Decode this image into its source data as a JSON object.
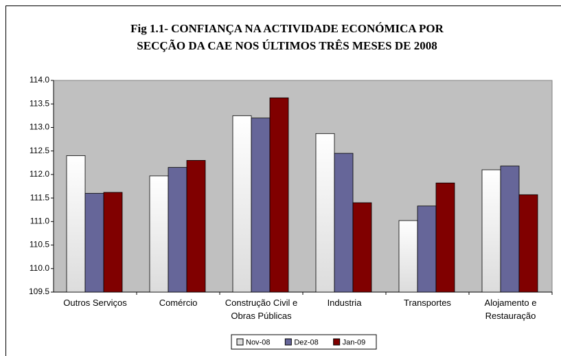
{
  "chart_data": {
    "type": "bar",
    "title": [
      "Fig 1.1- CONFIANÇA  NA ACTIVIDADE ECONÓMICA  POR",
      "SECÇÃO DA CAE  NOS ÚLTIMOS TRÊS MESES DE  2008"
    ],
    "categories": [
      "Outros Serviços",
      "Comércio",
      "Construção Civil e Obras Públicas",
      "Industria",
      "Transportes",
      "Alojamento e Restauração"
    ],
    "series": [
      {
        "name": "Nov-08",
        "color": "#dcdcdc",
        "values": [
          112.4,
          111.97,
          113.25,
          112.87,
          111.02,
          112.1
        ]
      },
      {
        "name": "Dez-08",
        "color": "#666699",
        "values": [
          111.6,
          112.15,
          113.2,
          112.45,
          111.33,
          112.18
        ]
      },
      {
        "name": "Jan-09",
        "color": "#800000",
        "values": [
          111.62,
          112.3,
          113.63,
          111.4,
          111.82,
          111.57
        ]
      }
    ],
    "ylim": [
      109.5,
      114.0
    ],
    "yticks": [
      109.5,
      {
        "value": 110,
        "label": "110.0"
      },
      110.5,
      {
        "value": 111,
        "label": "111.0"
      },
      111.5,
      {
        "value": 112,
        "label": "112.0"
      },
      112.5,
      {
        "value": 113,
        "label": "113.0"
      },
      113.5,
      {
        "value": 114,
        "label": "114.0"
      }
    ],
    "plot_background": "#c0c0c0",
    "legend": "bottom"
  }
}
